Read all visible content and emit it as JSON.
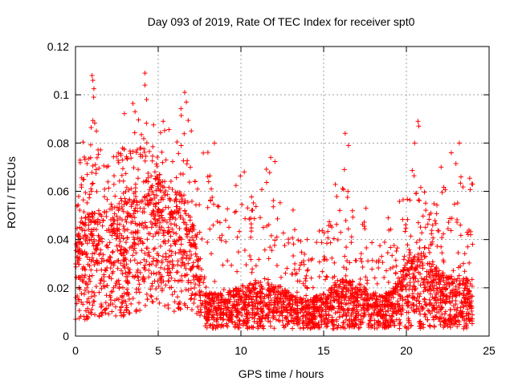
{
  "chart_data": {
    "type": "scatter",
    "title": "Day 093 of 2019, Rate Of TEC Index for receiver spt0",
    "xlabel": "GPS time / hours",
    "ylabel": "ROTI / TECUs",
    "xlim": [
      0,
      25
    ],
    "ylim": [
      0,
      0.12
    ],
    "xticks": [
      0,
      5,
      10,
      15,
      20,
      25
    ],
    "xtick_labels": [
      "0",
      "5",
      "10",
      "15",
      "20",
      "25"
    ],
    "yticks": [
      0,
      0.02,
      0.04,
      0.06,
      0.08,
      0.1,
      0.12
    ],
    "ytick_labels": [
      "0",
      "0.02",
      "0.04",
      "0.06",
      "0.08",
      "0.1",
      "0.12"
    ],
    "grid": true,
    "marker": "+",
    "color": "#ff0000",
    "series": [
      {
        "name": "spt0 ROTI",
        "description_profile": [
          {
            "x": 0.0,
            "low": 0.005,
            "typical": 0.03,
            "high": 0.062
          },
          {
            "x": 1.0,
            "low": 0.008,
            "typical": 0.035,
            "high": 0.108
          },
          {
            "x": 2.0,
            "low": 0.008,
            "typical": 0.035,
            "high": 0.085
          },
          {
            "x": 3.0,
            "low": 0.008,
            "typical": 0.04,
            "high": 0.093
          },
          {
            "x": 4.0,
            "low": 0.01,
            "typical": 0.045,
            "high": 0.109
          },
          {
            "x": 5.0,
            "low": 0.01,
            "typical": 0.045,
            "high": 0.089
          },
          {
            "x": 6.0,
            "low": 0.01,
            "typical": 0.04,
            "high": 0.085
          },
          {
            "x": 6.5,
            "low": 0.01,
            "typical": 0.04,
            "high": 0.101
          },
          {
            "x": 7.2,
            "low": 0.008,
            "typical": 0.03,
            "high": 0.08
          },
          {
            "x": 8.0,
            "low": 0.003,
            "typical": 0.012,
            "high": 0.08
          },
          {
            "x": 9.0,
            "low": 0.003,
            "typical": 0.012,
            "high": 0.06
          },
          {
            "x": 10.0,
            "low": 0.003,
            "typical": 0.014,
            "high": 0.068
          },
          {
            "x": 11.0,
            "low": 0.003,
            "typical": 0.015,
            "high": 0.068
          },
          {
            "x": 12.0,
            "low": 0.003,
            "typical": 0.015,
            "high": 0.074
          },
          {
            "x": 13.0,
            "low": 0.003,
            "typical": 0.012,
            "high": 0.06
          },
          {
            "x": 14.0,
            "low": 0.003,
            "typical": 0.01,
            "high": 0.042
          },
          {
            "x": 15.0,
            "low": 0.003,
            "typical": 0.012,
            "high": 0.056
          },
          {
            "x": 16.0,
            "low": 0.003,
            "typical": 0.016,
            "high": 0.084
          },
          {
            "x": 17.0,
            "low": 0.003,
            "typical": 0.015,
            "high": 0.058
          },
          {
            "x": 18.0,
            "low": 0.003,
            "typical": 0.012,
            "high": 0.05
          },
          {
            "x": 19.0,
            "low": 0.003,
            "typical": 0.012,
            "high": 0.052
          },
          {
            "x": 20.0,
            "low": 0.003,
            "typical": 0.02,
            "high": 0.06
          },
          {
            "x": 20.7,
            "low": 0.003,
            "typical": 0.025,
            "high": 0.089
          },
          {
            "x": 21.5,
            "low": 0.003,
            "typical": 0.02,
            "high": 0.06
          },
          {
            "x": 22.0,
            "low": 0.003,
            "typical": 0.018,
            "high": 0.07
          },
          {
            "x": 23.0,
            "low": 0.003,
            "typical": 0.016,
            "high": 0.08
          },
          {
            "x": 24.0,
            "low": 0.003,
            "typical": 0.016,
            "high": 0.063
          }
        ],
        "notable_points": [
          {
            "x": 1.0,
            "y": 0.108
          },
          {
            "x": 1.05,
            "y": 0.106
          },
          {
            "x": 1.1,
            "y": 0.099
          },
          {
            "x": 4.2,
            "y": 0.109
          },
          {
            "x": 4.2,
            "y": 0.104
          },
          {
            "x": 4.3,
            "y": 0.098
          },
          {
            "x": 6.6,
            "y": 0.101
          },
          {
            "x": 6.7,
            "y": 0.097
          },
          {
            "x": 3.6,
            "y": 0.093
          },
          {
            "x": 5.3,
            "y": 0.089
          },
          {
            "x": 7.0,
            "y": 0.085
          },
          {
            "x": 8.4,
            "y": 0.08
          },
          {
            "x": 11.8,
            "y": 0.074
          },
          {
            "x": 10.2,
            "y": 0.068
          },
          {
            "x": 16.3,
            "y": 0.084
          },
          {
            "x": 16.5,
            "y": 0.079
          },
          {
            "x": 20.7,
            "y": 0.089
          },
          {
            "x": 20.75,
            "y": 0.087
          },
          {
            "x": 20.5,
            "y": 0.08
          },
          {
            "x": 23.2,
            "y": 0.08
          },
          {
            "x": 22.1,
            "y": 0.07
          },
          {
            "x": 23.3,
            "y": 0.066
          },
          {
            "x": 24.0,
            "y": 0.063
          },
          {
            "x": 14.0,
            "y": 0.04
          },
          {
            "x": 18.9,
            "y": 0.049
          }
        ]
      }
    ]
  }
}
